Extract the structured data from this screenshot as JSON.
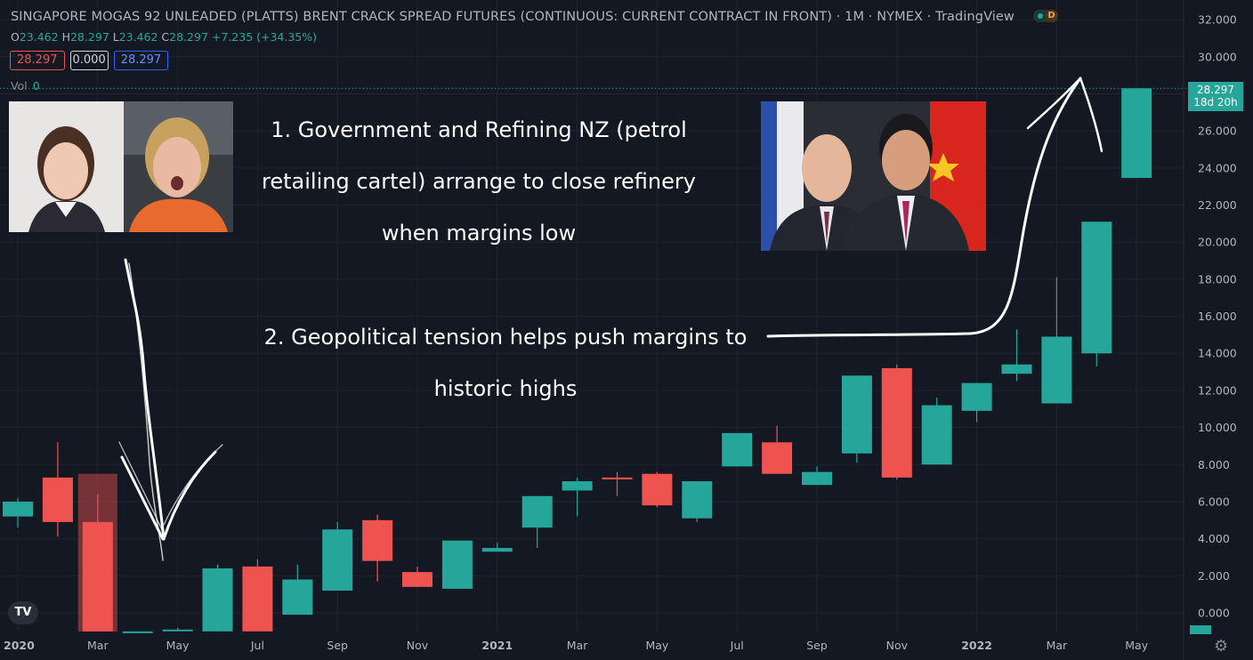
{
  "header": {
    "title": "SINGAPORE MOGAS 92 UNLEADED (PLATTS) BRENT CRACK SPREAD FUTURES (CONTINUOUS: CURRENT CONTRACT IN FRONT)",
    "interval": "1M",
    "exchange": "NYMEX",
    "source": "TradingView",
    "status_badge": "D"
  },
  "ohlc": {
    "o_label": "O",
    "o": "23.462",
    "h_label": "H",
    "h": "28.297",
    "l_label": "L",
    "l": "23.462",
    "c_label": "C",
    "c": "28.297",
    "change": "+7.235 (+34.35%)"
  },
  "price_boxes": {
    "bid": "28.297",
    "spread": "0.000",
    "ask": "28.297"
  },
  "volume": {
    "label": "Vol",
    "value": "0"
  },
  "last_price": {
    "value": "28.297",
    "countdown": "18d 20h"
  },
  "annotations": {
    "note1_line1": "1. Government and Refining NZ (petrol",
    "note1_line2": "retailing cartel) arrange to close refinery",
    "note1_line3": "when margins low",
    "note2_line1": "2. Geopolitical tension helps push margins to",
    "note2_line2": "historic highs"
  },
  "logo_text": "TV",
  "colors": {
    "up": "#26a69a",
    "down": "#ef5350",
    "background": "#141823",
    "accent": "#2962ff"
  },
  "chart_data": {
    "type": "candlestick",
    "title": "SINGAPORE MOGAS 92 UNLEADED (PLATTS) BRENT CRACK SPREAD FUTURES (CONTINUOUS: CURRENT CONTRACT IN FRONT)",
    "interval": "1M",
    "ylim": [
      -1,
      32
    ],
    "y_ticks": [
      "32.000",
      "30.000",
      "28.000",
      "26.000",
      "24.000",
      "22.000",
      "20.000",
      "18.000",
      "16.000",
      "14.000",
      "12.000",
      "10.000",
      "8.000",
      "6.000",
      "4.000",
      "2.000",
      "0.000"
    ],
    "x_tick_labels": [
      "2020",
      "Mar",
      "May",
      "Jul",
      "Sep",
      "Nov",
      "2021",
      "Mar",
      "May",
      "Jul",
      "Sep",
      "Nov",
      "2022",
      "Mar",
      "May"
    ],
    "candles": [
      {
        "date": "2020-01",
        "o": 5.2,
        "h": 6.2,
        "l": 4.6,
        "c": 6.0
      },
      {
        "date": "2020-02",
        "o": 7.3,
        "h": 9.2,
        "l": 4.1,
        "c": 4.9
      },
      {
        "date": "2020-03",
        "o": 4.9,
        "h": 6.4,
        "l": -1.0,
        "c": -1.0
      },
      {
        "date": "2020-04",
        "o": -1.0,
        "h": -1.0,
        "l": -1.0,
        "c": -1.0
      },
      {
        "date": "2020-05",
        "o": -0.9,
        "h": -0.8,
        "l": -1.0,
        "c": -0.9
      },
      {
        "date": "2020-06",
        "o": -1.0,
        "h": 2.6,
        "l": -1.0,
        "c": 2.4
      },
      {
        "date": "2020-07",
        "o": 2.5,
        "h": 2.9,
        "l": -1.0,
        "c": -1.0
      },
      {
        "date": "2020-08",
        "o": -0.1,
        "h": 2.6,
        "l": -0.1,
        "c": 1.8
      },
      {
        "date": "2020-09",
        "o": 1.2,
        "h": 4.9,
        "l": 1.2,
        "c": 4.5
      },
      {
        "date": "2020-10",
        "o": 5.0,
        "h": 5.3,
        "l": 1.7,
        "c": 2.8
      },
      {
        "date": "2020-11",
        "o": 2.2,
        "h": 2.5,
        "l": 1.4,
        "c": 1.4
      },
      {
        "date": "2020-12",
        "o": 1.3,
        "h": 3.9,
        "l": 1.3,
        "c": 3.9
      },
      {
        "date": "2021-01",
        "o": 3.3,
        "h": 3.8,
        "l": 3.3,
        "c": 3.5
      },
      {
        "date": "2021-02",
        "o": 4.6,
        "h": 6.3,
        "l": 3.5,
        "c": 6.3
      },
      {
        "date": "2021-03",
        "o": 6.6,
        "h": 7.3,
        "l": 5.2,
        "c": 7.1
      },
      {
        "date": "2021-04",
        "o": 7.3,
        "h": 7.6,
        "l": 6.3,
        "c": 7.2
      },
      {
        "date": "2021-05",
        "o": 7.5,
        "h": 7.6,
        "l": 5.7,
        "c": 5.8
      },
      {
        "date": "2021-06",
        "o": 5.1,
        "h": 7.1,
        "l": 4.9,
        "c": 7.1
      },
      {
        "date": "2021-07",
        "o": 7.9,
        "h": 9.7,
        "l": 7.9,
        "c": 9.7
      },
      {
        "date": "2021-08",
        "o": 9.2,
        "h": 10.1,
        "l": 7.5,
        "c": 7.5
      },
      {
        "date": "2021-09",
        "o": 6.9,
        "h": 7.9,
        "l": 6.9,
        "c": 7.6
      },
      {
        "date": "2021-10",
        "o": 8.6,
        "h": 12.8,
        "l": 8.1,
        "c": 12.8
      },
      {
        "date": "2021-11",
        "o": 13.2,
        "h": 13.4,
        "l": 7.2,
        "c": 7.3
      },
      {
        "date": "2021-12",
        "o": 8.0,
        "h": 11.6,
        "l": 8.0,
        "c": 11.2
      },
      {
        "date": "2022-01",
        "o": 10.9,
        "h": 12.4,
        "l": 10.3,
        "c": 12.4
      },
      {
        "date": "2022-02",
        "o": 12.9,
        "h": 15.3,
        "l": 12.5,
        "c": 13.4
      },
      {
        "date": "2022-03",
        "o": 11.3,
        "h": 18.1,
        "l": 11.3,
        "c": 14.9
      },
      {
        "date": "2022-04",
        "o": 14.0,
        "h": 21.1,
        "l": 13.3,
        "c": 21.1
      },
      {
        "date": "2022-05",
        "o": 23.462,
        "h": 28.297,
        "l": 23.462,
        "c": 28.297
      }
    ]
  }
}
